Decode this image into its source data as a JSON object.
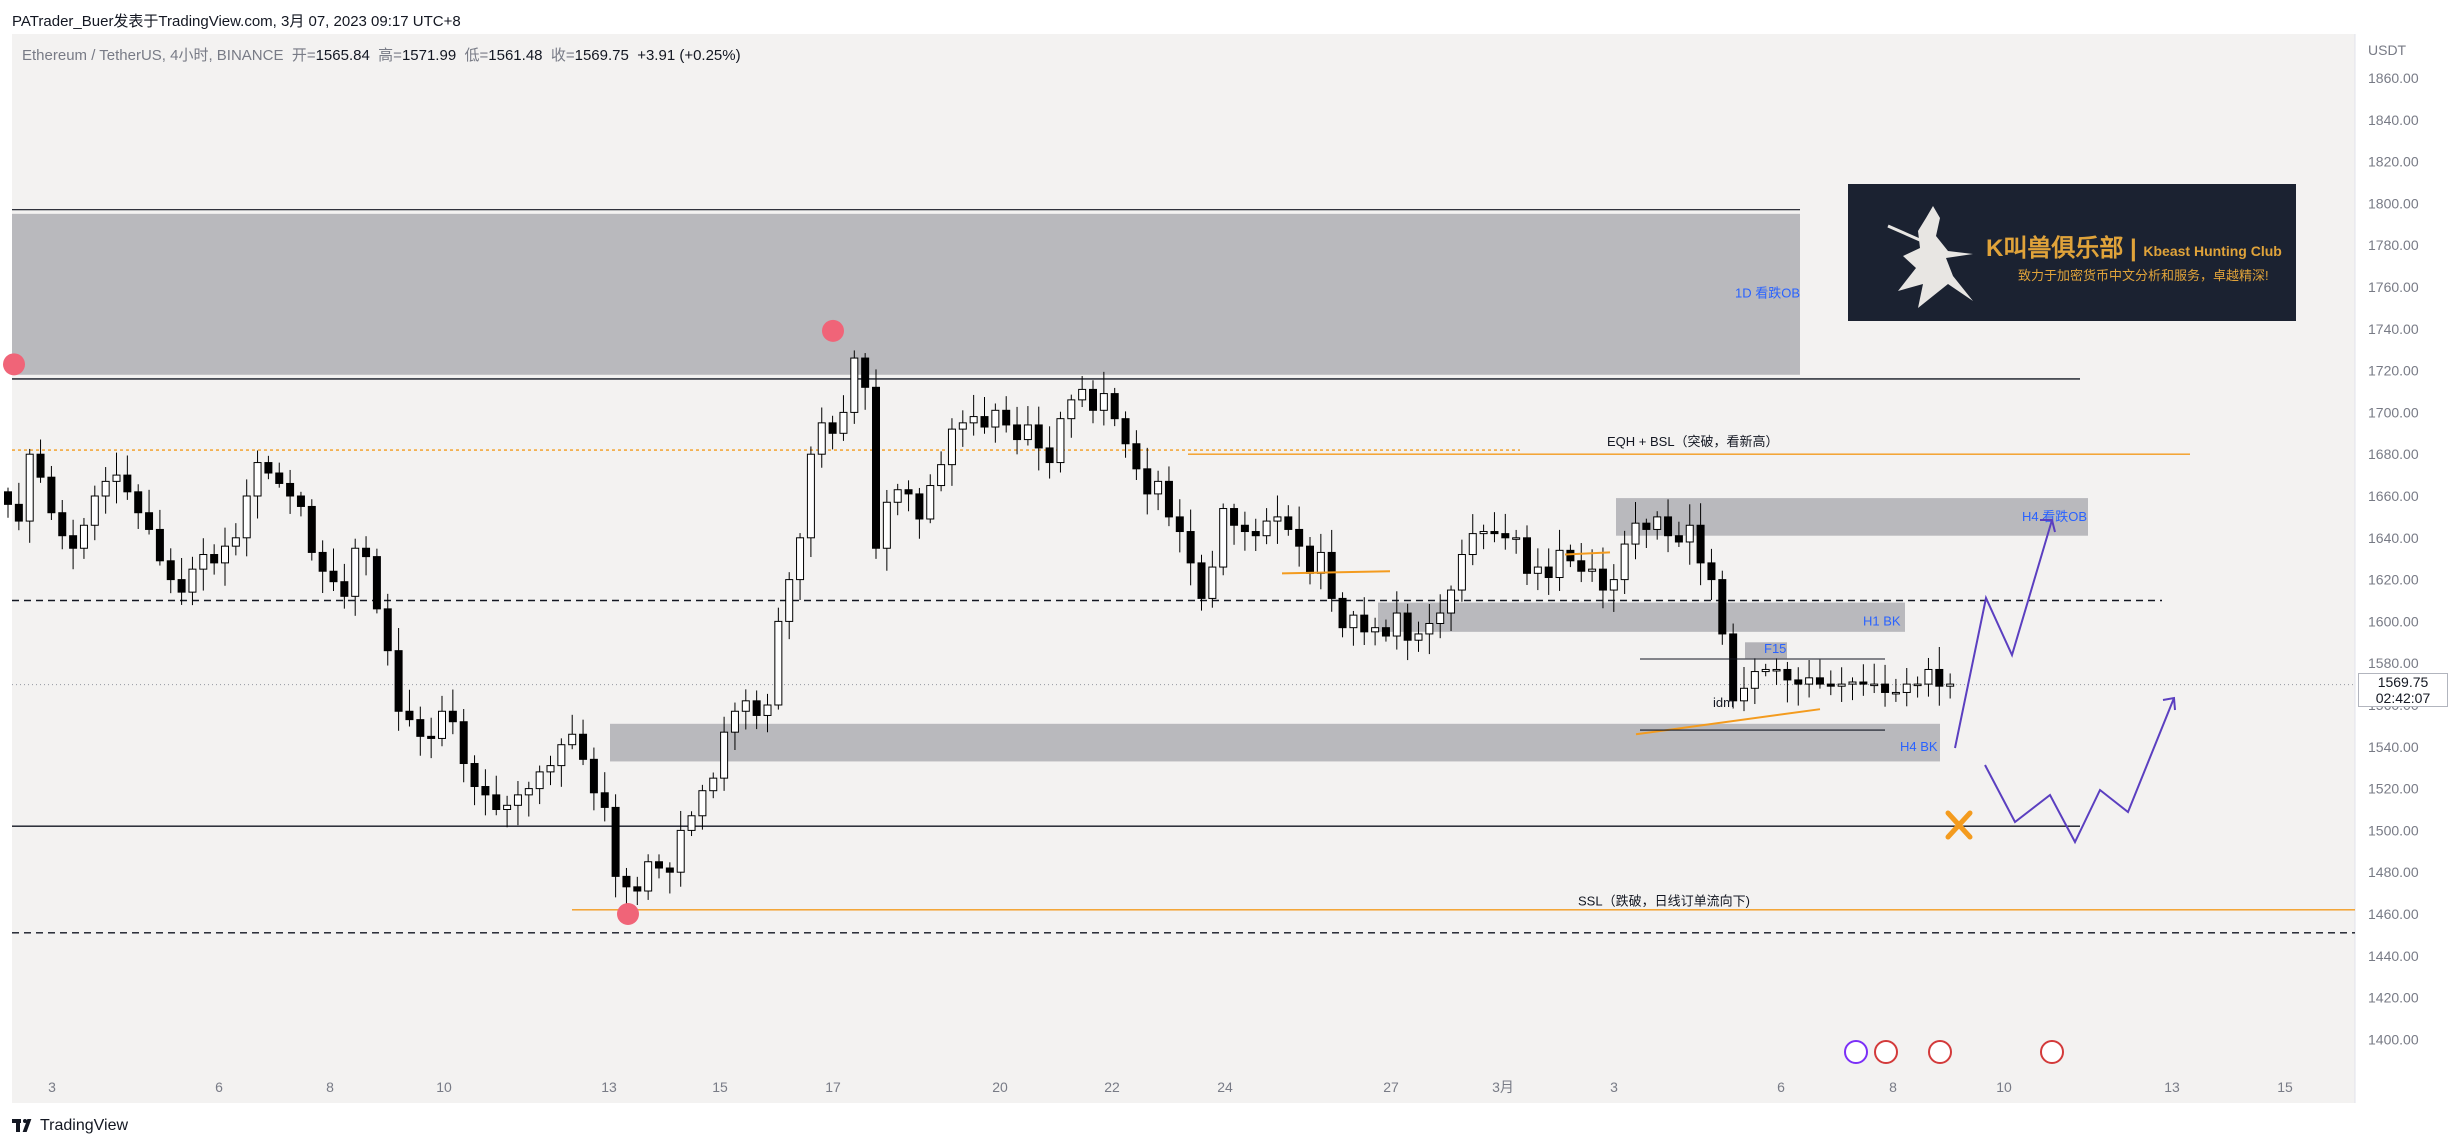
{
  "header": {
    "text": "PATrader_Buer发表于TradingView.com, 3月 07, 2023 09:17 UTC+8"
  },
  "legend": {
    "symbol": "Ethereum / TetherUS, 4小时, BINANCE",
    "open_label": "开=",
    "open": "1565.84",
    "high_label": "高=",
    "high": "1571.99",
    "low_label": "低=",
    "low": "1561.48",
    "close_label": "收=",
    "close": "1569.75",
    "change": "+3.91 (+0.25%)"
  },
  "price_axis": {
    "currency": "USDT",
    "ticks": [
      "1860.00",
      "1840.00",
      "1820.00",
      "1800.00",
      "1780.00",
      "1760.00",
      "1740.00",
      "1720.00",
      "1700.00",
      "1680.00",
      "1660.00",
      "1640.00",
      "1620.00",
      "1600.00",
      "1580.00",
      "1560.00",
      "1540.00",
      "1520.00",
      "1500.00",
      "1480.00",
      "1460.00",
      "1440.00",
      "1420.00",
      "1400.00"
    ],
    "current_price": "1569.75",
    "countdown": "02:42:07"
  },
  "time_axis": {
    "ticks": [
      "3",
      "6",
      "8",
      "10",
      "13",
      "15",
      "17",
      "20",
      "22",
      "24",
      "27",
      "3月",
      "3",
      "6",
      "8",
      "10",
      "13",
      "15"
    ]
  },
  "annotations": {
    "ob_1d": "1D 看跌OB",
    "eqh": "EQH + BSL（突破，看新高）",
    "h4_ob": "H4 看跌OB",
    "h1_bk": "H1 BK",
    "h4_bk": "H4 BK",
    "f15": "F15",
    "idm": "idm",
    "ssl": "SSL（跌破，日线订单流向下)"
  },
  "promo": {
    "title": "K叫兽俱乐部 |",
    "title_en": "Kbeast Hunting Club",
    "subtitle": "致力于加密货币中文分析和服务，卓越精深!"
  },
  "footer": {
    "brand": "TradingView"
  },
  "colors": {
    "up": "#ffffff",
    "down": "#000000",
    "zone": "#b3b2b7",
    "orange": "#f39b1e",
    "arrow": "#5b3fc0",
    "marker": "#f06478",
    "label_blue": "#2962ff",
    "background": "#f3f2f1"
  },
  "chart_data": {
    "type": "candlestick",
    "title": "Ethereum / TetherUS, 4小时, BINANCE",
    "ylabel": "USDT",
    "ylim": [
      1390,
      1870
    ],
    "x_ticks": [
      "3",
      "6",
      "8",
      "10",
      "13",
      "15",
      "17",
      "20",
      "22",
      "24",
      "27",
      "3月",
      "3",
      "6",
      "8",
      "10",
      "13",
      "15"
    ],
    "last_ohlc": {
      "open": 1565.84,
      "high": 1571.99,
      "low": 1561.48,
      "close": 1569.75
    },
    "zones": [
      {
        "label": "1D 看跌OB",
        "from": 1718,
        "to": 1795
      },
      {
        "label": "H4 看跌OB",
        "from": 1641,
        "to": 1659
      },
      {
        "label": "H1 BK",
        "from": 1595,
        "to": 1609
      },
      {
        "label": "H4 BK",
        "from": 1533,
        "to": 1551
      }
    ],
    "levels": [
      {
        "label": "EQH + BSL（突破，看新高）",
        "price": 1680,
        "style": "orange"
      },
      {
        "label": "SSL（跌破，日线订单流向下)",
        "price": 1462,
        "style": "orange"
      },
      {
        "price": 1716,
        "style": "solid"
      },
      {
        "price": 1610,
        "style": "dashed"
      },
      {
        "price": 1502,
        "style": "solid"
      },
      {
        "price": 1451,
        "style": "dashed"
      },
      {
        "price": 1682,
        "style": "orange-dotted"
      }
    ],
    "series_close": [
      1656,
      1648,
      1680,
      1669,
      1652,
      1641,
      1635,
      1646,
      1660,
      1667,
      1670,
      1662,
      1652,
      1644,
      1629,
      1620,
      1614,
      1625,
      1632,
      1628,
      1636,
      1640,
      1660,
      1676,
      1671,
      1666,
      1660,
      1655,
      1633,
      1624,
      1619,
      1612,
      1635,
      1631,
      1606,
      1586,
      1557,
      1553,
      1545,
      1544,
      1557,
      1552,
      1532,
      1521,
      1517,
      1510,
      1512,
      1517,
      1520,
      1528,
      1531,
      1541,
      1546,
      1534,
      1518,
      1511,
      1478,
      1473,
      1471,
      1485,
      1482,
      1480,
      1500,
      1507,
      1519,
      1525,
      1547,
      1557,
      1562,
      1555,
      1560,
      1600,
      1620,
      1640,
      1680,
      1695,
      1690,
      1700,
      1726,
      1712,
      1635,
      1657,
      1663,
      1661,
      1649,
      1665,
      1675,
      1692,
      1695,
      1698,
      1693,
      1701,
      1694,
      1687,
      1694,
      1683,
      1676,
      1697,
      1706,
      1711,
      1701,
      1709,
      1697,
      1685,
      1673,
      1661,
      1667,
      1650,
      1643,
      1628,
      1611,
      1626,
      1654,
      1646,
      1643,
      1641,
      1648,
      1650,
      1644,
      1636,
      1623,
      1633,
      1611,
      1597,
      1603,
      1595,
      1597,
      1593,
      1604,
      1591,
      1594,
      1599,
      1604,
      1615,
      1632,
      1642,
      1643,
      1642,
      1640,
      1640,
      1623,
      1626,
      1621,
      1634,
      1629,
      1624,
      1625,
      1615,
      1620,
      1637,
      1647,
      1644,
      1650,
      1641,
      1638,
      1646,
      1628,
      1620,
      1594,
      1562,
      1568,
      1576,
      1577,
      1577,
      1572,
      1570,
      1573,
      1570,
      1569,
      1570,
      1571,
      1570,
      1570,
      1566,
      1566,
      1570,
      1570,
      1577,
      1569,
      1570
    ]
  }
}
